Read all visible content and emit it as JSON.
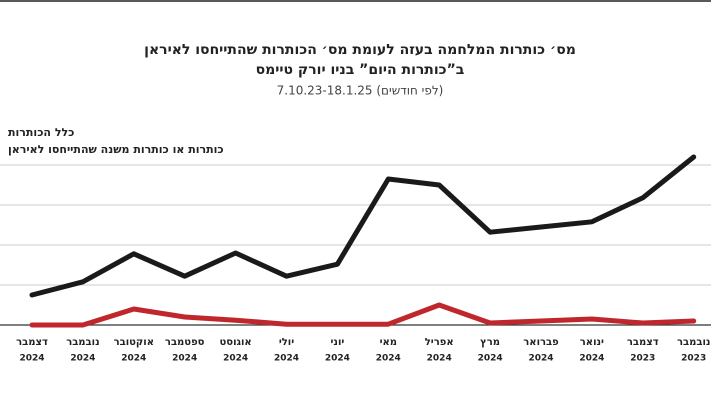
{
  "chart_data": {
    "type": "line",
    "title": "מס׳ כותרות המלחמה בעזה לעומת מס׳ הכותרות שהתייחסו לאיראן",
    "title_line2": "ב”כותרות היום” בניו יורק טיימס",
    "subtitle": "(לפי חודשים) 7.10.23-18.1.25",
    "categories": [
      "דצמבר",
      "נובמבר",
      "אוקטובר",
      "ספטמבר",
      "אוגוסט",
      "יולי",
      "יוני",
      "מאי",
      "אפריל",
      "מרץ",
      "פברואר",
      "ינואר",
      "דצמבר",
      "נובמבר"
    ],
    "years": [
      "2024",
      "2024",
      "2024",
      "2024",
      "2024",
      "2024",
      "2024",
      "2024",
      "2024",
      "2024",
      "2024",
      "2024",
      "2023",
      "2023"
    ],
    "series": [
      {
        "name": "כלל הכותרות",
        "color": "#1a1a1a",
        "values": [
          0.75,
          1.08,
          1.78,
          1.22,
          1.8,
          1.22,
          1.52,
          3.65,
          3.5,
          2.32,
          2.45,
          2.58,
          3.18,
          4.2
        ]
      },
      {
        "name": "כותרות או כותרות משנה שהתייחסו לאיראן",
        "color": "#c0272d",
        "values": [
          0,
          0,
          0.4,
          0.2,
          0.12,
          0.02,
          0.02,
          0.02,
          0.5,
          0.05,
          0.1,
          0.15,
          0.05,
          0.1
        ]
      }
    ],
    "ylim": [
      0,
      5
    ],
    "yticks": [
      0,
      1,
      2,
      3,
      4
    ],
    "grid": true
  }
}
